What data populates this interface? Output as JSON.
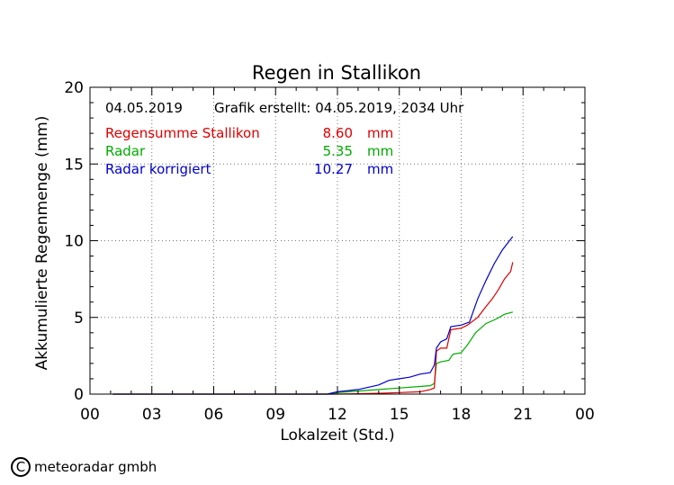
{
  "chart_data": {
    "type": "line",
    "title": "Regen in Stallikon",
    "xlabel": "Lokalzeit (Std.)",
    "ylabel": "Akkumulierte Regenmenge (mm)",
    "xlim": [
      0,
      24
    ],
    "ylim": [
      0,
      20
    ],
    "x_ticks": [
      "00",
      "03",
      "06",
      "09",
      "12",
      "15",
      "18",
      "21",
      "00"
    ],
    "y_ticks": [
      "0",
      "5",
      "10",
      "15",
      "20"
    ],
    "grid": true,
    "date": "04.05.2019",
    "created": "Grafik erstellt: 04.05.2019, 2034 Uhr",
    "legend": [
      {
        "name": "Regensumme Stallikon",
        "value": "8.60",
        "unit": "mm",
        "color": "#dd0000"
      },
      {
        "name": "Radar",
        "value": "5.35",
        "unit": "mm",
        "color": "#00aa00"
      },
      {
        "name": "Radar korrigiert",
        "value": "10.27",
        "unit": "mm",
        "color": "#0000cc"
      }
    ],
    "series": [
      {
        "name": "Regensumme Stallikon",
        "color": "#dd0000",
        "points": [
          [
            1.1,
            0
          ],
          [
            12.0,
            0.0
          ],
          [
            14.0,
            0.05
          ],
          [
            15.0,
            0.1
          ],
          [
            16.0,
            0.15
          ],
          [
            16.5,
            0.3
          ],
          [
            16.7,
            0.4
          ],
          [
            16.8,
            2.8
          ],
          [
            17.0,
            3.0
          ],
          [
            17.3,
            3.0
          ],
          [
            17.5,
            4.2
          ],
          [
            18.0,
            4.3
          ],
          [
            18.3,
            4.5
          ],
          [
            18.8,
            5.0
          ],
          [
            19.2,
            5.7
          ],
          [
            19.5,
            6.2
          ],
          [
            19.8,
            6.8
          ],
          [
            20.1,
            7.5
          ],
          [
            20.4,
            8.0
          ],
          [
            20.5,
            8.6
          ]
        ]
      },
      {
        "name": "Radar",
        "color": "#00aa00",
        "points": [
          [
            1.1,
            0
          ],
          [
            11.7,
            0.0
          ],
          [
            12.0,
            0.1
          ],
          [
            13.0,
            0.2
          ],
          [
            14.0,
            0.3
          ],
          [
            15.0,
            0.4
          ],
          [
            16.0,
            0.5
          ],
          [
            16.5,
            0.55
          ],
          [
            16.7,
            0.7
          ],
          [
            16.8,
            2.0
          ],
          [
            17.0,
            2.1
          ],
          [
            17.4,
            2.2
          ],
          [
            17.6,
            2.6
          ],
          [
            18.0,
            2.7
          ],
          [
            18.3,
            3.2
          ],
          [
            18.7,
            4.0
          ],
          [
            19.2,
            4.6
          ],
          [
            19.7,
            4.9
          ],
          [
            20.1,
            5.2
          ],
          [
            20.5,
            5.35
          ]
        ]
      },
      {
        "name": "Radar korrigiert",
        "color": "#0000cc",
        "points": [
          [
            1.1,
            0
          ],
          [
            11.5,
            0.0
          ],
          [
            12.0,
            0.15
          ],
          [
            13.0,
            0.3
          ],
          [
            14.0,
            0.6
          ],
          [
            14.5,
            0.9
          ],
          [
            15.0,
            1.0
          ],
          [
            15.5,
            1.1
          ],
          [
            16.0,
            1.3
          ],
          [
            16.5,
            1.4
          ],
          [
            16.7,
            1.9
          ],
          [
            16.8,
            3.0
          ],
          [
            17.0,
            3.4
          ],
          [
            17.3,
            3.6
          ],
          [
            17.5,
            4.4
          ],
          [
            18.0,
            4.5
          ],
          [
            18.4,
            4.7
          ],
          [
            18.8,
            6.2
          ],
          [
            19.2,
            7.4
          ],
          [
            19.6,
            8.5
          ],
          [
            20.0,
            9.4
          ],
          [
            20.5,
            10.27
          ]
        ]
      }
    ]
  },
  "footer": {
    "symbol": "C",
    "text": "meteoradar gmbh"
  }
}
